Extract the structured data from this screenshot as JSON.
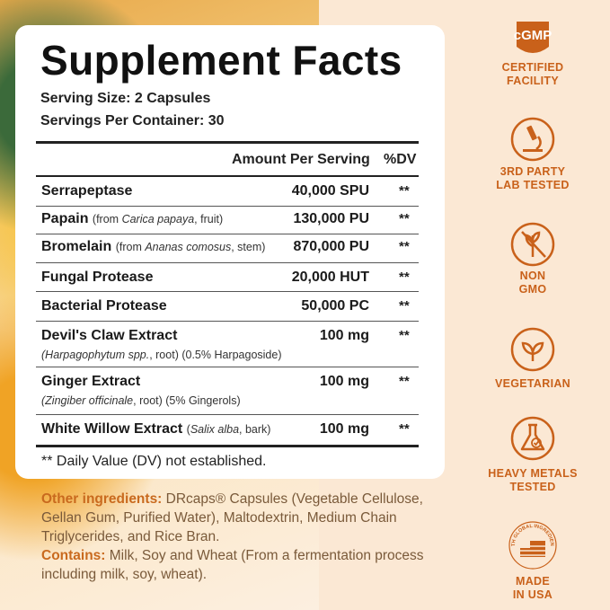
{
  "facts": {
    "title": "Supplement Facts",
    "serving_size": "Serving Size:  2 Capsules",
    "servings_per_container": "Servings Per Container: 30",
    "header_amount": "Amount Per Serving",
    "header_dv": "%DV",
    "rows": [
      {
        "name": "Serrapeptase",
        "amount": "40,000 SPU",
        "dv": "**"
      },
      {
        "name": "Papain",
        "source_pre": "(from ",
        "source_italic": "Carica papaya",
        "source_post": ", fruit)",
        "amount": "130,000 PU",
        "dv": "**"
      },
      {
        "name": "Bromelain",
        "source_pre": "(from ",
        "source_italic": "Ananas comosus",
        "source_post": ", stem)",
        "amount": "870,000 PU",
        "dv": "**"
      },
      {
        "name": "Fungal Protease",
        "amount": "20,000 HUT",
        "dv": "**"
      },
      {
        "name": "Bacterial Protease",
        "amount": "50,000 PC",
        "dv": "**"
      },
      {
        "name": "Devil's Claw Extract",
        "sub_italic": "(Harpagophytum spp.",
        "sub_post": ", root) (0.5% Harpagoside)",
        "amount": "100 mg",
        "dv": "**"
      },
      {
        "name": "Ginger Extract",
        "sub_italic": "(Zingiber officinale",
        "sub_post": ", root) (5% Gingerols)",
        "amount": "100 mg",
        "dv": "**"
      },
      {
        "name": "White Willow Extract",
        "source_pre": "(",
        "source_italic": "Salix alba",
        "source_post": ", bark)",
        "amount": "100 mg",
        "dv": "**"
      }
    ],
    "footnote": "** Daily Value (DV) not established."
  },
  "other_ingredients": {
    "label": "Other ingredients:",
    "line1": " DRcaps® Capsules (Vegetable Cellulose,",
    "line2": "Gellan Gum, Purified Water), Maltodextrin, Medium Chain",
    "line3": "Triglycerides, and Rice Bran."
  },
  "contains": {
    "label": "Contains:",
    "line1": " Milk, Soy and Wheat (From a fermentation process",
    "line2": "including milk, soy, wheat)."
  },
  "badges": [
    {
      "icon": "cgmp-seal-icon",
      "seal_text": "cGMP",
      "line1": "CERTIFIED",
      "line2": "FACILITY"
    },
    {
      "icon": "microscope-icon",
      "line1": "3RD PARTY",
      "line2": "LAB TESTED"
    },
    {
      "icon": "non-gmo-icon",
      "line1": "NON",
      "line2": "GMO"
    },
    {
      "icon": "leaf-icon",
      "line1": "VEGETARIAN",
      "line2": ""
    },
    {
      "icon": "flask-check-icon",
      "line1": "HEAVY METALS",
      "line2": "TESTED"
    },
    {
      "icon": "usa-flag-seal-icon",
      "seal_text": "WITH GLOBAL INGREDIENTS",
      "line1": "MADE",
      "line2": "IN USA"
    }
  ],
  "colors": {
    "accent": "#c9611a",
    "ingredient_text": "#7a5a3a",
    "ink": "#1a1a1a"
  }
}
